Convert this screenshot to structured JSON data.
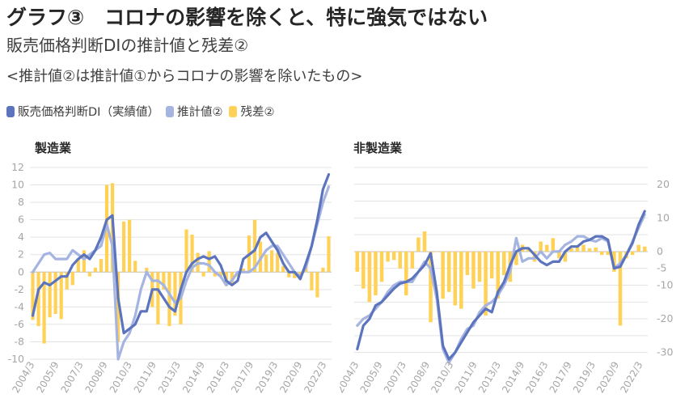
{
  "header": {
    "title": "グラフ③　コロナの影響を除くと、特に強気ではない",
    "subtitle": "販売価格判断DIの推計値と残差②",
    "note": "<推計値②は推計値①からコロナの影響を除いたもの>"
  },
  "legend": [
    {
      "name": "販売価格判断DI（実績値）",
      "color": "#5B74BD"
    },
    {
      "name": "推計値②",
      "color": "#A5B4E0"
    },
    {
      "name": "残差②",
      "color": "#FFD257"
    }
  ],
  "colors": {
    "actual": "#5B74BD",
    "estimate": "#A5B4E0",
    "residual": "#FFD257",
    "axis_text": "#A6A6A6",
    "grid": "#E3E3E3"
  },
  "chart_data": [
    {
      "type": "bar+line",
      "title": "製造業",
      "ylim": [
        -10,
        12
      ],
      "yticks": [
        -10,
        -8,
        -6,
        -4,
        -2,
        0,
        2,
        4,
        6,
        8,
        10,
        12
      ],
      "xtick_labels": [
        "2004/3",
        "2005/9",
        "2007/3",
        "2008/9",
        "2010/3",
        "2011/9",
        "2013/3",
        "2014/9",
        "2016/3",
        "2017/9",
        "2019/3",
        "2020/9",
        "2022/3"
      ],
      "series": [
        {
          "name": "販売価格判断DI（実績値）",
          "type": "line",
          "values": [
            -5,
            -2,
            -1.2,
            -1.5,
            -1,
            -0.5,
            -0.5,
            0.8,
            1.5,
            2,
            1.5,
            2.5,
            4,
            6,
            6.5,
            -3,
            -7,
            -6.5,
            -6,
            -4.5,
            -4.5,
            -2,
            -2,
            -3,
            -4,
            -4.5,
            -2,
            0,
            1,
            1.5,
            1.8,
            1.5,
            1.8,
            0.8,
            -1,
            -1.5,
            -1,
            1.5,
            2,
            2.5,
            4,
            4.5,
            3.5,
            2.5,
            1,
            0,
            0,
            -0.8,
            1,
            3,
            6,
            9.5,
            11.2
          ]
        },
        {
          "name": "推計値②",
          "type": "line",
          "values": [
            0,
            1,
            2,
            2.2,
            1.5,
            1.5,
            1.5,
            2.5,
            2,
            1.5,
            2,
            2.5,
            3,
            5.5,
            3,
            -10,
            -8,
            -7,
            -5,
            -2,
            0,
            -1,
            -1,
            -1.5,
            -2.5,
            -3.5,
            -3,
            -1,
            0.5,
            1,
            1,
            0.8,
            0,
            -0.5,
            -1.5,
            -1,
            0,
            0,
            0,
            0.5,
            1.5,
            2.5,
            3,
            3,
            2,
            1,
            0,
            -0.5,
            0.5,
            3,
            5.5,
            8,
            9.8
          ]
        },
        {
          "name": "残差②",
          "type": "bar",
          "values": [
            -5.5,
            -6.2,
            -8.2,
            -5.2,
            -4.8,
            -5.4,
            -2,
            -1.5,
            1.5,
            2.5,
            -0.5,
            0.5,
            1.5,
            10,
            10.2,
            -8,
            5.8,
            6,
            1.3,
            0,
            0.5,
            -4,
            -6,
            -2,
            -6.2,
            -5,
            -6,
            4.9,
            4.3,
            2.2,
            -0.5,
            2.4,
            -0.5,
            -0.5,
            -1.6,
            -1.5,
            -0.5,
            0.4,
            4.2,
            6,
            3.5,
            2,
            2.5,
            2.2,
            0.7,
            -0.6,
            -0.7,
            -0.5,
            0.7,
            -2.1,
            -2.9,
            0.5,
            4.1
          ]
        }
      ]
    },
    {
      "type": "bar+line",
      "title": "非製造業",
      "ylim": [
        -32,
        25
      ],
      "yticks": [
        -30,
        -25,
        -20,
        -15,
        -10,
        -5,
        0,
        5,
        10,
        15,
        20,
        25
      ],
      "yticklabels": [
        "-30",
        "",
        "-20",
        "",
        "-10",
        "-5",
        "0",
        "",
        "10",
        "",
        "20",
        ""
      ],
      "xtick_labels": [
        "2004/3",
        "2005/9",
        "2007/3",
        "2008/9",
        "2010/3",
        "2011/9",
        "2013/3",
        "2014/9",
        "2016/3",
        "2017/9",
        "2019/3",
        "2020/9",
        "2022/3"
      ],
      "series": [
        {
          "name": "販売価格判断DI（実績値）",
          "type": "line",
          "values": [
            -29,
            -22,
            -20,
            -16,
            -15,
            -13,
            -11,
            -9.5,
            -9,
            -8,
            -6,
            -4,
            -0.5,
            -12,
            -28,
            -32,
            -30,
            -27,
            -24,
            -21,
            -19,
            -17,
            -18,
            -12,
            -9,
            -4,
            0,
            1,
            1,
            -1,
            -3,
            -4,
            -3,
            -3,
            0,
            1.5,
            1.5,
            3,
            3.5,
            4.5,
            4.5,
            3.5,
            -5,
            -4.5,
            -1,
            2.5,
            8,
            12
          ]
        },
        {
          "name": "推計値②",
          "type": "line",
          "values": [
            -22,
            -20,
            -19,
            -17,
            -15,
            -12,
            -10,
            -9,
            -9,
            -9,
            -6,
            -3,
            -5,
            -14,
            -29,
            -33,
            -30,
            -26,
            -23,
            -22,
            -18,
            -16,
            -15,
            -13,
            -10,
            -6,
            4,
            -3,
            -2,
            -2,
            0,
            -2,
            0,
            0,
            2,
            3,
            4.5,
            4.5,
            3.5,
            3,
            4,
            3,
            -5,
            -3.5,
            -1,
            3,
            7,
            11
          ]
        },
        {
          "name": "残差②",
          "type": "bar",
          "values": [
            -6,
            -11,
            -15,
            -13,
            -9,
            -3,
            -2.5,
            -5,
            -13,
            -5,
            4.2,
            6,
            -21,
            0,
            -14,
            -12,
            -16,
            -17,
            -7,
            -11,
            -9,
            -19,
            -8,
            -14,
            -7,
            -9,
            -4,
            2,
            1,
            -3,
            3,
            2,
            4,
            -2,
            -3,
            1,
            1.5,
            2,
            1,
            1.2,
            -1,
            -1,
            -6,
            -22,
            -2,
            -1,
            2,
            1.5
          ]
        }
      ]
    }
  ]
}
